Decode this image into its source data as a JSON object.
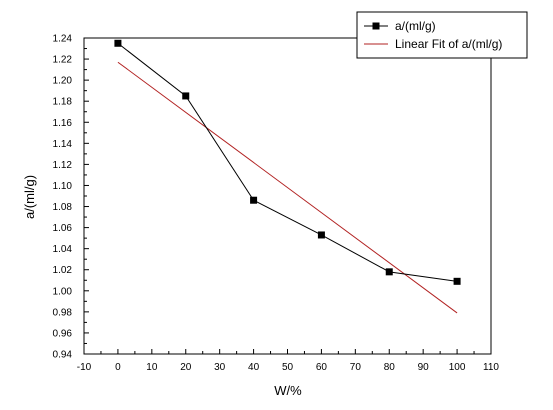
{
  "chart_data": {
    "type": "scatter",
    "xlabel": "W/%",
    "ylabel": "a/(ml/g)",
    "xlim": [
      -10,
      110
    ],
    "ylim": [
      0.94,
      1.24
    ],
    "x_ticks": [
      "-10",
      "0",
      "10",
      "20",
      "30",
      "40",
      "50",
      "60",
      "70",
      "80",
      "90",
      "100",
      "110"
    ],
    "y_ticks": [
      "0.94",
      "0.96",
      "0.98",
      "1.00",
      "1.02",
      "1.04",
      "1.06",
      "1.08",
      "1.10",
      "1.12",
      "1.14",
      "1.16",
      "1.18",
      "1.20",
      "1.22",
      "1.24"
    ],
    "grid": false,
    "legend_position": "top-right",
    "series": [
      {
        "name": "a/(ml/g)",
        "mode": "line+markers",
        "marker": "square",
        "color": "#000000",
        "x": [
          0,
          20,
          40,
          60,
          80,
          100
        ],
        "y": [
          1.235,
          1.185,
          1.086,
          1.053,
          1.018,
          1.009
        ]
      },
      {
        "name": "Linear Fit of a/(ml/g)",
        "mode": "line",
        "color": "#b22222",
        "x": [
          0,
          100
        ],
        "y": [
          1.217,
          0.979
        ]
      }
    ]
  }
}
